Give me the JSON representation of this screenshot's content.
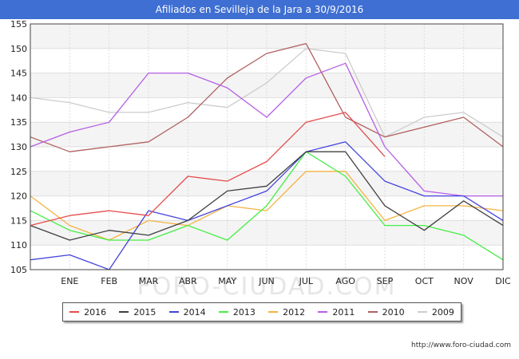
{
  "title": "Afiliados en Sevilleja de la Jara a 30/9/2016",
  "source": "http://www.foro-ciudad.com",
  "watermark": "FORO-CIUDAD.COM",
  "chart_data": {
    "type": "line",
    "categories": [
      "",
      "ENE",
      "FEB",
      "MAR",
      "ABR",
      "MAY",
      "JUN",
      "JUL",
      "AGO",
      "SEP",
      "OCT",
      "NOV",
      "DIC"
    ],
    "ylim": [
      105,
      155
    ],
    "yticks": [
      105,
      110,
      115,
      120,
      125,
      130,
      135,
      140,
      145,
      150,
      155
    ],
    "grid": true,
    "legend_position": "bottom",
    "series": [
      {
        "name": "2016",
        "color": "#e64c4c",
        "values": [
          114,
          116,
          117,
          116,
          124,
          123,
          127,
          135,
          137,
          128,
          null,
          null,
          null
        ]
      },
      {
        "name": "2015",
        "color": "#404040",
        "values": [
          114,
          111,
          113,
          112,
          115,
          121,
          122,
          129,
          129,
          118,
          113,
          119,
          114
        ]
      },
      {
        "name": "2014",
        "color": "#4444dd",
        "values": [
          107,
          108,
          105,
          117,
          115,
          118,
          121,
          129,
          131,
          123,
          120,
          120,
          115
        ]
      },
      {
        "name": "2013",
        "color": "#44ee44",
        "values": [
          117,
          113,
          111,
          111,
          114,
          111,
          118,
          129,
          124,
          114,
          114,
          112,
          107
        ]
      },
      {
        "name": "2012",
        "color": "#f5b342",
        "values": [
          120,
          114,
          111,
          115,
          114,
          118,
          117,
          125,
          125,
          115,
          118,
          118,
          117
        ]
      },
      {
        "name": "2011",
        "color": "#b55ee6",
        "values": [
          130,
          133,
          135,
          145,
          145,
          142,
          136,
          144,
          147,
          130,
          121,
          120,
          120
        ]
      },
      {
        "name": "2010",
        "color": "#b06060",
        "values": [
          132,
          129,
          130,
          131,
          136,
          144,
          149,
          151,
          136,
          132,
          134,
          136,
          130
        ]
      },
      {
        "name": "2009",
        "color": "#cccccc",
        "values": [
          140,
          139,
          137,
          137,
          139,
          138,
          143,
          150,
          149,
          132,
          136,
          137,
          132
        ]
      }
    ]
  }
}
